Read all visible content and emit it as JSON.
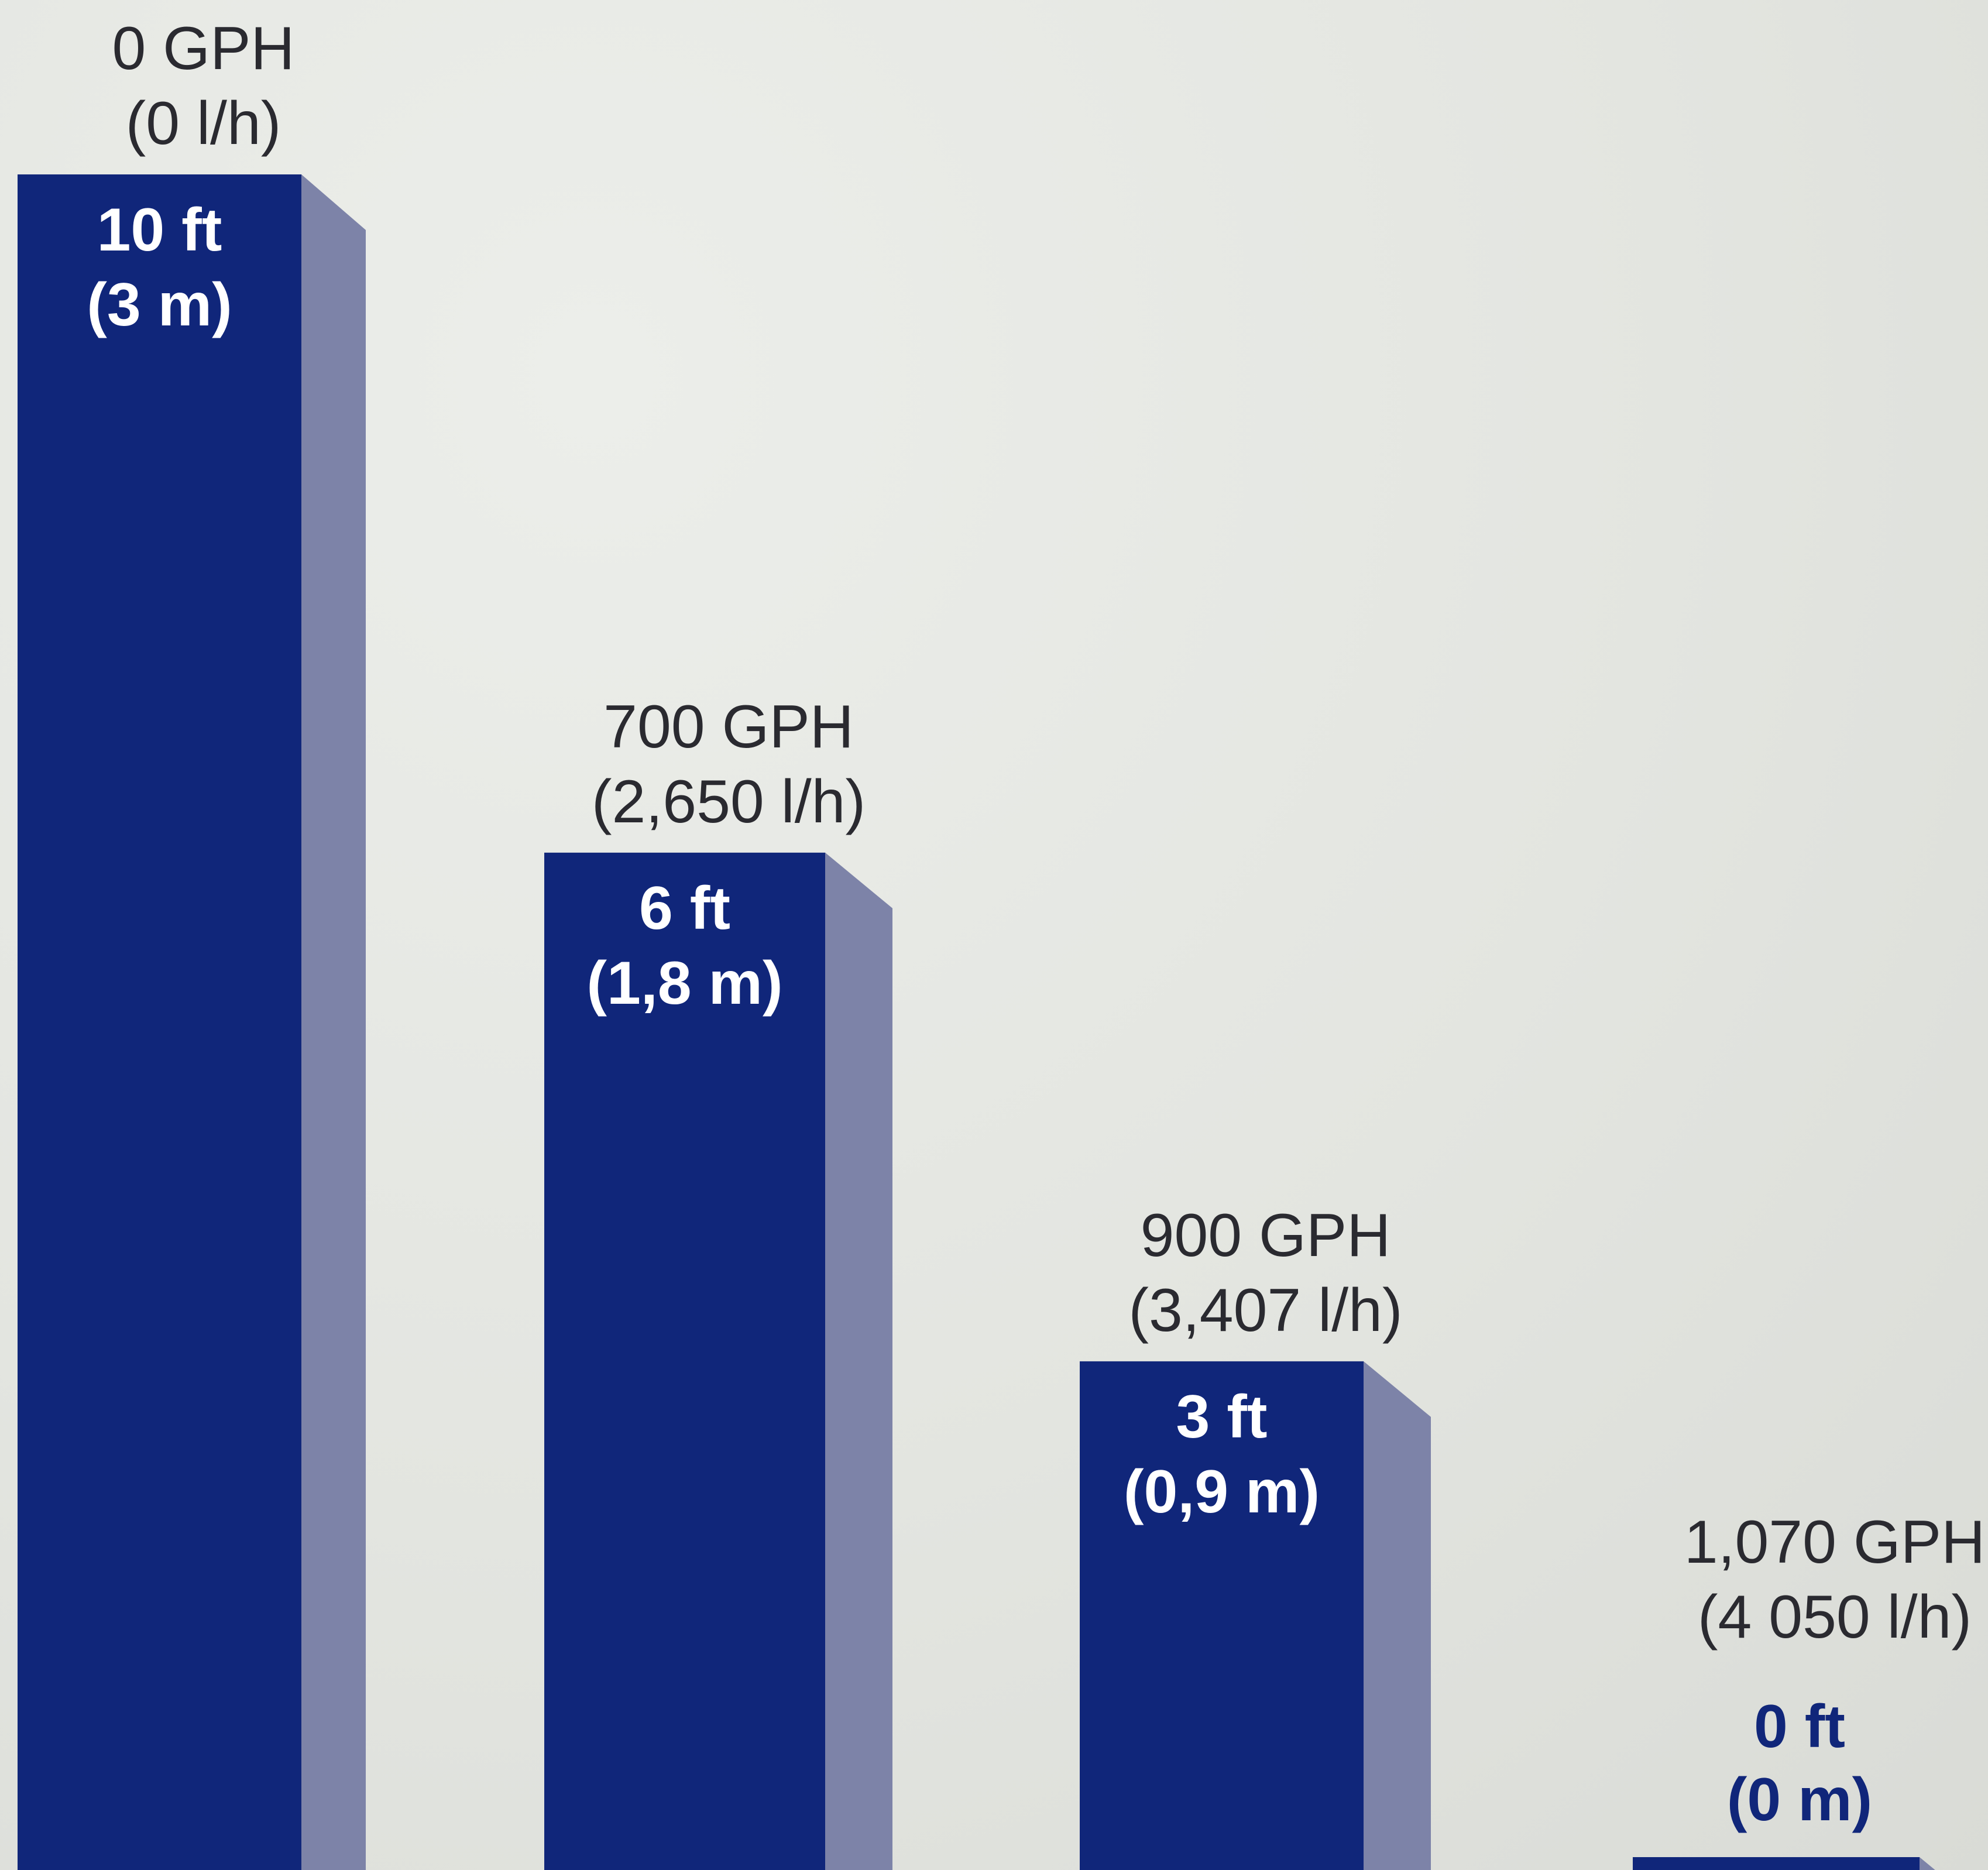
{
  "chart_data": {
    "type": "bar",
    "categories": [
      "10 ft (3 m)",
      "6 ft (1,8 m)",
      "3 ft (0,9 m)",
      "0 ft (0 m)"
    ],
    "values": [
      10,
      6,
      3,
      0
    ],
    "unit": "ft",
    "ylim": [
      0,
      10
    ],
    "grid": false,
    "bars": [
      {
        "height_label": "10 ft",
        "height_label_metric": "(3 m)",
        "flow_label": "0 GPH",
        "flow_label_metric": "(0 l/h)",
        "height_ft": 10,
        "flow_gph": 0
      },
      {
        "height_label": "6 ft",
        "height_label_metric": "(1,8 m)",
        "flow_label": "700 GPH",
        "flow_label_metric": "(2,650 l/h)",
        "height_ft": 6,
        "flow_gph": 700
      },
      {
        "height_label": "3 ft",
        "height_label_metric": "(0,9 m)",
        "flow_label": "900 GPH",
        "flow_label_metric": "(3,407 l/h)",
        "height_ft": 3,
        "flow_gph": 900
      },
      {
        "height_label": "0 ft",
        "height_label_metric": "(0 m)",
        "flow_label": "1,070 GPH",
        "flow_label_metric": "(4 050 l/h)",
        "height_ft": 0,
        "flow_gph": 1070
      }
    ],
    "colors": {
      "bar_front": "#10267a",
      "bar_side": "#7d83a8",
      "bar_top": "#5c6496",
      "label_inside": "#ffffff",
      "label_outside": "#2a2a30"
    }
  }
}
